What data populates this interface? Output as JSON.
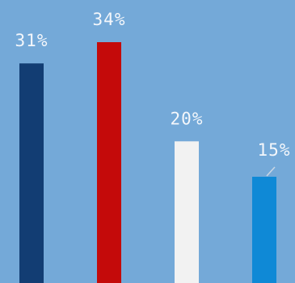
{
  "chart_data": {
    "type": "bar",
    "categories": [
      "",
      "",
      "",
      ""
    ],
    "values": [
      31,
      34,
      20,
      15
    ],
    "data_labels": [
      "31%",
      "34%",
      "20%",
      "15%"
    ],
    "colors": [
      "#123d73",
      "#c40a0a",
      "#f2f2f2",
      "#0f89d6"
    ],
    "title": "",
    "xlabel": "",
    "ylabel": "",
    "ylim": [
      0,
      34
    ],
    "grid": false,
    "legend": "none"
  },
  "background_color": "#74a9d8"
}
